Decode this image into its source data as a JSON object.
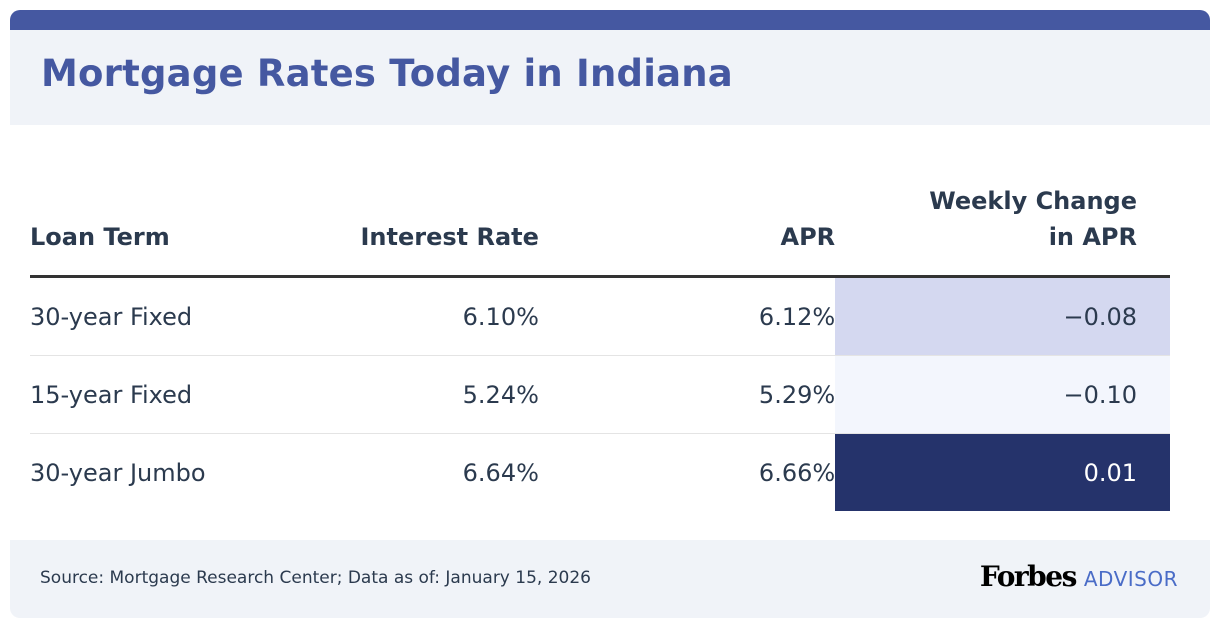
{
  "title": "Mortgage Rates Today in Indiana",
  "table": {
    "headers": [
      "Loan Term",
      "Interest Rate",
      "APR",
      "Weekly Change in APR"
    ],
    "rows": [
      {
        "term": "30-year Fixed",
        "rate": "6.10%",
        "apr": "6.12%",
        "change": "−0.08",
        "change_bg": "#d4d8f0",
        "change_color": "#2b3a4e"
      },
      {
        "term": "15-year Fixed",
        "rate": "5.24%",
        "apr": "5.29%",
        "change": "−0.10",
        "change_bg": "#f3f6fd",
        "change_color": "#2b3a4e"
      },
      {
        "term": "30-year Jumbo",
        "rate": "6.64%",
        "apr": "6.66%",
        "change": "0.01",
        "change_bg": "#25336b",
        "change_color": "#ffffff"
      }
    ]
  },
  "footer": {
    "source": "Source: Mortgage Research Center; Data as of: January 15, 2026",
    "logo_brand": "Forbes",
    "logo_sub": "ADVISOR"
  },
  "colors": {
    "accent": "#4558a1",
    "header_bg": "#f0f3f8"
  }
}
